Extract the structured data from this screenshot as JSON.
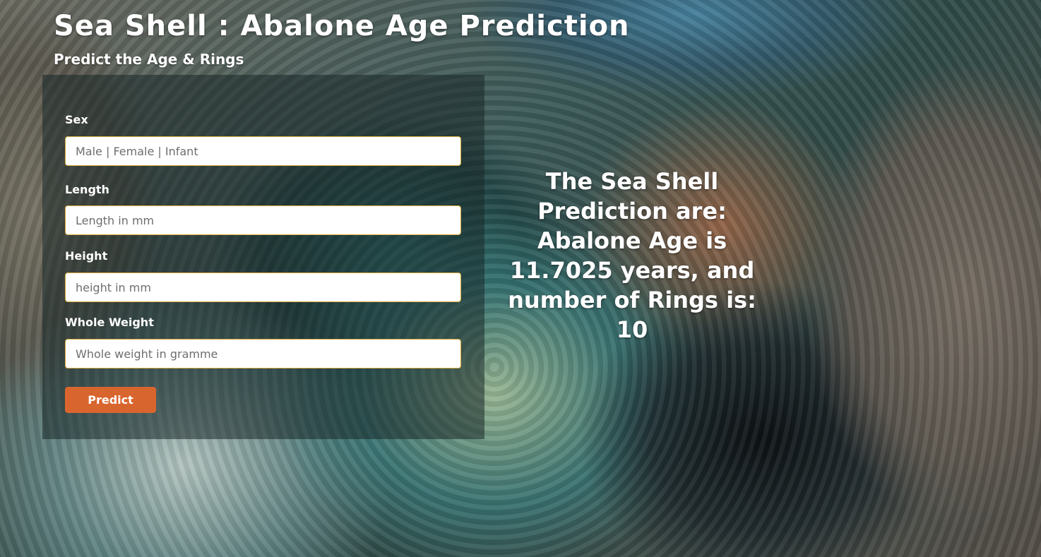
{
  "header": {
    "title": "Sea Shell : Abalone Age Prediction",
    "subtitle": "Predict the Age & Rings"
  },
  "form": {
    "fields": [
      {
        "label": "Sex",
        "placeholder": "Male | Female | Infant",
        "value": ""
      },
      {
        "label": "Length",
        "placeholder": "Length in mm",
        "value": ""
      },
      {
        "label": "Height",
        "placeholder": "height in mm",
        "value": ""
      },
      {
        "label": "Whole Weight",
        "placeholder": "Whole weight in gramme",
        "value": ""
      }
    ],
    "submit_label": "Predict"
  },
  "result": {
    "text": "The Sea Shell Prediction are: Abalone Age is 11.7025 years, and number of Rings is: 10"
  },
  "colors": {
    "button": "#d9652e",
    "input_border": "#d9a83a",
    "panel": "rgba(25,40,40,0.55)"
  }
}
